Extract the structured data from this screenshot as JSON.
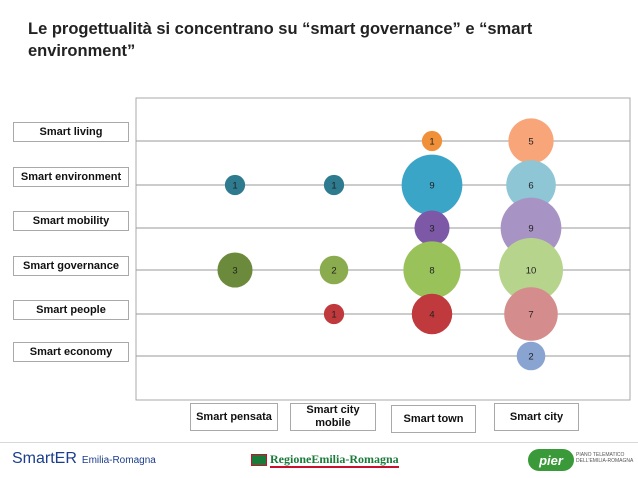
{
  "title": "Le progettualità si concentrano su “smart governance” e “smart environment”",
  "chart_data": {
    "type": "bubble",
    "rows": [
      "Smart living",
      "Smart environment",
      "Smart mobility",
      "Smart governance",
      "Smart people",
      "Smart economy"
    ],
    "columns": [
      "Smart pensata",
      "Smart city mobile",
      "Smart town",
      "Smart city"
    ],
    "points": [
      {
        "row": 0,
        "col": 2,
        "value": 1,
        "color": "#f0913a"
      },
      {
        "row": 0,
        "col": 3,
        "value": 5,
        "color": "#f9a57a"
      },
      {
        "row": 1,
        "col": 0,
        "value": 1,
        "color": "#2e7a8e"
      },
      {
        "row": 1,
        "col": 1,
        "value": 1,
        "color": "#2e7a8e"
      },
      {
        "row": 1,
        "col": 2,
        "value": 9,
        "color": "#3ba5c8"
      },
      {
        "row": 1,
        "col": 3,
        "value": 6,
        "color": "#8ec6d6"
      },
      {
        "row": 2,
        "col": 2,
        "value": 3,
        "color": "#7c58a6"
      },
      {
        "row": 2,
        "col": 3,
        "value": 9,
        "color": "#a894c4"
      },
      {
        "row": 3,
        "col": 0,
        "value": 3,
        "color": "#6c8a3c"
      },
      {
        "row": 3,
        "col": 1,
        "value": 2,
        "color": "#8aab4e"
      },
      {
        "row": 3,
        "col": 2,
        "value": 8,
        "color": "#9ac25a"
      },
      {
        "row": 3,
        "col": 3,
        "value": 10,
        "color": "#b7d48d"
      },
      {
        "row": 4,
        "col": 1,
        "value": 1,
        "color": "#c0393c"
      },
      {
        "row": 4,
        "col": 2,
        "value": 4,
        "color": "#c0393c"
      },
      {
        "row": 4,
        "col": 3,
        "value": 7,
        "color": "#d58c8c"
      },
      {
        "row": 5,
        "col": 3,
        "value": 2,
        "color": "#8aa4d2"
      }
    ]
  },
  "footer": {
    "smarter_logo": "SmartER",
    "smarter_sub": "Emilia-Romagna",
    "region_logo": "RegioneEmilia-Romagna",
    "pier_logo": "pier",
    "pier_text": "PIANO TELEMATICO DELL'EMILIA-ROMAGNA"
  }
}
